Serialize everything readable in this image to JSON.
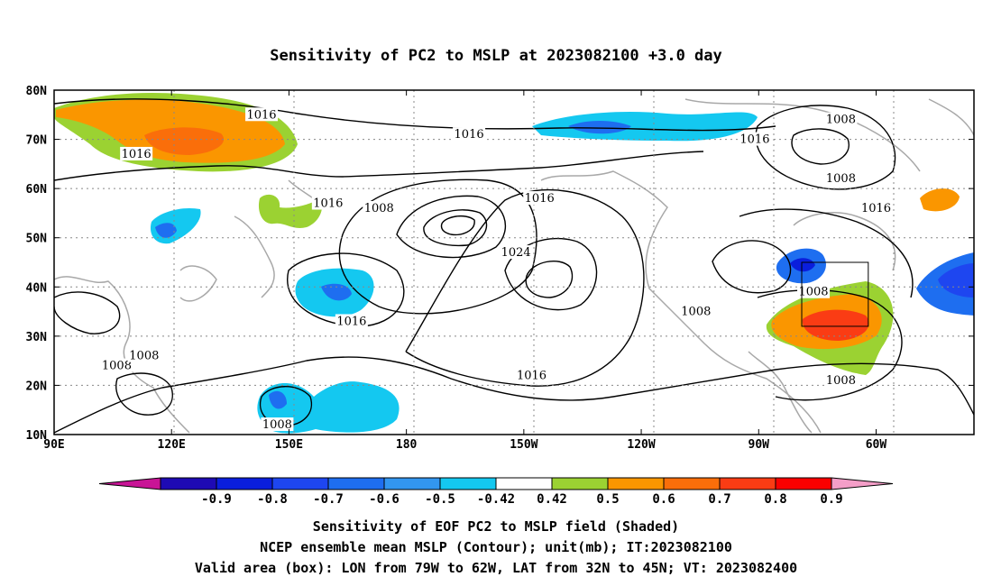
{
  "chart_data": {
    "type": "heatmap",
    "title": "Sensitivity of PC2 to MSLP at 2023082100 +3.0 day",
    "x_tick_labels": [
      "90E",
      "120E",
      "150E",
      "180",
      "150W",
      "120W",
      "90W",
      "60W"
    ],
    "y_tick_labels": [
      "80N",
      "70N",
      "60N",
      "50N",
      "40N",
      "30N",
      "20N",
      "10N"
    ],
    "xlim_deg_east": [
      90,
      325
    ],
    "ylim_deg_north": [
      10,
      80
    ],
    "grid": true,
    "colorbar": {
      "labels": [
        "-0.9",
        "-0.8",
        "-0.7",
        "-0.6",
        "-0.5",
        "-0.42",
        "0.42",
        "0.5",
        "0.6",
        "0.7",
        "0.8",
        "0.9"
      ],
      "colors": [
        "#c81496",
        "#1e0ab4",
        "#0a1edc",
        "#1e46f0",
        "#1e6ef0",
        "#3296f0",
        "#14c8f0",
        "#ffffff",
        "#9bd232",
        "#fa9600",
        "#fa6e0a",
        "#fa3c14",
        "#fa0000",
        "#f49ec8"
      ]
    },
    "contour_labels": [
      {
        "text": "1016",
        "lon": 143,
        "lat": 75
      },
      {
        "text": "1016",
        "lon": 111,
        "lat": 67
      },
      {
        "text": "1016",
        "lon": 160,
        "lat": 57
      },
      {
        "text": "1016",
        "lon": 196,
        "lat": 71
      },
      {
        "text": "1016",
        "lon": 214,
        "lat": 58
      },
      {
        "text": "1008",
        "lon": 291,
        "lat": 74
      },
      {
        "text": "1016",
        "lon": 269,
        "lat": 70
      },
      {
        "text": "1008",
        "lon": 173,
        "lat": 56
      },
      {
        "text": "1024",
        "lon": 208,
        "lat": 47
      },
      {
        "text": "1008",
        "lon": 284,
        "lat": 39
      },
      {
        "text": "1008",
        "lon": 291,
        "lat": 62
      },
      {
        "text": "1016",
        "lon": 300,
        "lat": 56
      },
      {
        "text": "1016",
        "lon": 166,
        "lat": 33
      },
      {
        "text": "1008",
        "lon": 254,
        "lat": 35
      },
      {
        "text": "1016",
        "lon": 212,
        "lat": 22
      },
      {
        "text": "1008",
        "lon": 106,
        "lat": 24
      },
      {
        "text": "1008",
        "lon": 113,
        "lat": 26
      },
      {
        "text": "1008",
        "lon": 291,
        "lat": 21
      },
      {
        "text": "1008",
        "lon": 147,
        "lat": 12
      }
    ],
    "box": {
      "lon_west": 281,
      "lon_east": 298,
      "lat_south": 32,
      "lat_north": 45
    },
    "captions": [
      "Sensitivity of EOF PC2 to MSLP field (Shaded)",
      "NCEP ensemble mean MSLP (Contour); unit(mb); IT:2023082100",
      "Valid area (box): LON from 79W to 62W, LAT from 32N to 45N; VT: 2023082400"
    ]
  }
}
